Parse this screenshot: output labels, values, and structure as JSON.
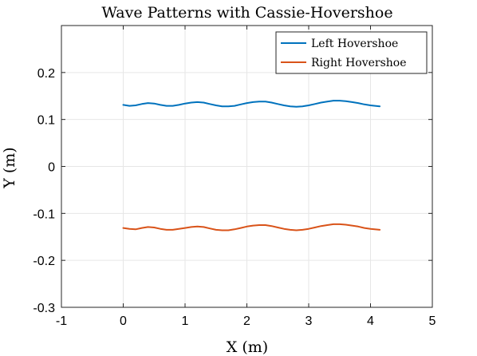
{
  "chart_data": {
    "type": "line",
    "title": "Wave Patterns with Cassie-Hovershoe",
    "xlabel": "X (m)",
    "ylabel": "Y (m)",
    "xlim": [
      -1,
      5
    ],
    "ylim": [
      -0.3,
      0.3
    ],
    "xticks": [
      "-1",
      "0",
      "1",
      "2",
      "3",
      "4",
      "5"
    ],
    "yticks": [
      "-0.3",
      "-0.2",
      "-0.1",
      "0",
      "0.1",
      "0.2"
    ],
    "grid": true,
    "legend_position": "top-right",
    "series": [
      {
        "name": "Left Hovershoe",
        "color": "#0072BD",
        "x": [
          0,
          0.1,
          0.2,
          0.3,
          0.4,
          0.5,
          0.6,
          0.7,
          0.8,
          0.9,
          1.0,
          1.1,
          1.2,
          1.3,
          1.4,
          1.5,
          1.6,
          1.7,
          1.8,
          1.9,
          2.0,
          2.1,
          2.2,
          2.3,
          2.4,
          2.5,
          2.6,
          2.7,
          2.8,
          2.9,
          3.0,
          3.1,
          3.2,
          3.3,
          3.4,
          3.5,
          3.6,
          3.7,
          3.8,
          3.9,
          4.0,
          4.15
        ],
        "y": [
          0.131,
          0.129,
          0.13,
          0.133,
          0.135,
          0.134,
          0.131,
          0.129,
          0.129,
          0.131,
          0.134,
          0.136,
          0.137,
          0.136,
          0.133,
          0.13,
          0.128,
          0.128,
          0.129,
          0.132,
          0.135,
          0.137,
          0.138,
          0.138,
          0.136,
          0.133,
          0.13,
          0.128,
          0.127,
          0.128,
          0.13,
          0.133,
          0.136,
          0.138,
          0.14,
          0.14,
          0.139,
          0.137,
          0.135,
          0.132,
          0.13,
          0.128
        ]
      },
      {
        "name": "Right Hovershoe",
        "color": "#D95319",
        "x": [
          0,
          0.1,
          0.2,
          0.3,
          0.4,
          0.5,
          0.6,
          0.7,
          0.8,
          0.9,
          1.0,
          1.1,
          1.2,
          1.3,
          1.4,
          1.5,
          1.6,
          1.7,
          1.8,
          1.9,
          2.0,
          2.1,
          2.2,
          2.3,
          2.4,
          2.5,
          2.6,
          2.7,
          2.8,
          2.9,
          3.0,
          3.1,
          3.2,
          3.3,
          3.4,
          3.5,
          3.6,
          3.7,
          3.8,
          3.9,
          4.0,
          4.15
        ],
        "y": [
          -0.131,
          -0.133,
          -0.134,
          -0.131,
          -0.129,
          -0.13,
          -0.133,
          -0.135,
          -0.135,
          -0.133,
          -0.131,
          -0.129,
          -0.128,
          -0.129,
          -0.132,
          -0.135,
          -0.136,
          -0.136,
          -0.134,
          -0.131,
          -0.128,
          -0.126,
          -0.125,
          -0.125,
          -0.127,
          -0.13,
          -0.133,
          -0.135,
          -0.136,
          -0.135,
          -0.133,
          -0.13,
          -0.127,
          -0.125,
          -0.123,
          -0.123,
          -0.124,
          -0.126,
          -0.128,
          -0.131,
          -0.133,
          -0.135
        ]
      }
    ]
  }
}
